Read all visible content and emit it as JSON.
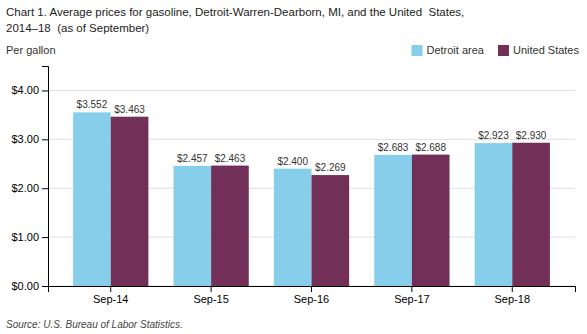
{
  "chart_data": {
    "type": "bar",
    "title": "Chart 1. Average prices for gasoline, Detroit-Warren-Dearborn, MI, and the United  States,",
    "subtitle": "2014–18  (as of September)",
    "ylabel": "Per gallon",
    "annotations": [
      "Source: U.S. Bureau of Labor Statistics."
    ],
    "categories": [
      "Sep-14",
      "Sep-15",
      "Sep-16",
      "Sep-17",
      "Sep-18"
    ],
    "series": [
      {
        "name": "Detroit area",
        "color": "#87CEEB",
        "values": [
          3.552,
          2.457,
          2.4,
          2.683,
          2.923
        ],
        "value_labels": [
          "$3.552",
          "$2.457",
          "$2.400",
          "$2.683",
          "$2.923"
        ]
      },
      {
        "name": "United States",
        "color": "#722F57",
        "values": [
          3.463,
          2.463,
          2.269,
          2.688,
          2.93
        ],
        "value_labels": [
          "$3.463",
          "$2.463",
          "$2.269",
          "$2.688",
          "$2.930"
        ]
      }
    ],
    "ylim": [
      0,
      4.5
    ],
    "yticks": [
      {
        "value": 0.0,
        "label": "$0.00"
      },
      {
        "value": 1.0,
        "label": "$1.00"
      },
      {
        "value": 2.0,
        "label": "$2.00"
      },
      {
        "value": 3.0,
        "label": "$3.00"
      },
      {
        "value": 4.0,
        "label": "$4.00"
      }
    ],
    "grid": true,
    "legend": "top-right",
    "data_labels": true
  }
}
